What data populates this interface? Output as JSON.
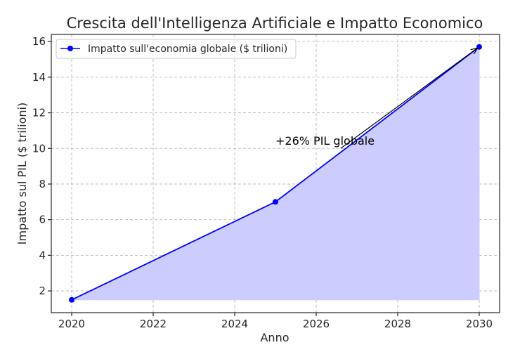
{
  "chart_data": {
    "type": "area",
    "title": "Crescita dell'Intelligenza Artificiale e Impatto Economico",
    "xlabel": "Anno",
    "ylabel": "Impatto sul PIL ($ trilioni)",
    "xlim": [
      2019.5,
      2030.5
    ],
    "ylim": [
      0.78,
      16.4
    ],
    "x_ticks": [
      2020,
      2022,
      2024,
      2026,
      2028,
      2030
    ],
    "y_ticks": [
      2,
      4,
      6,
      8,
      10,
      12,
      14,
      16
    ],
    "grid": true,
    "legend_position": "top-left",
    "series": [
      {
        "name": "Impatto sull'economia globale ($ trilioni)",
        "color": "#0000ff",
        "fill_color": "#ccccff",
        "marker": "circle",
        "x": [
          2020,
          2025,
          2030
        ],
        "y": [
          1.5,
          7.0,
          15.7
        ]
      }
    ],
    "annotations": [
      {
        "text": "+26% PIL globale",
        "text_at": [
          2025,
          10.2
        ],
        "arrow_from": [
          2026.6,
          10.0
        ],
        "arrow_to": [
          2030,
          15.7
        ]
      }
    ]
  }
}
